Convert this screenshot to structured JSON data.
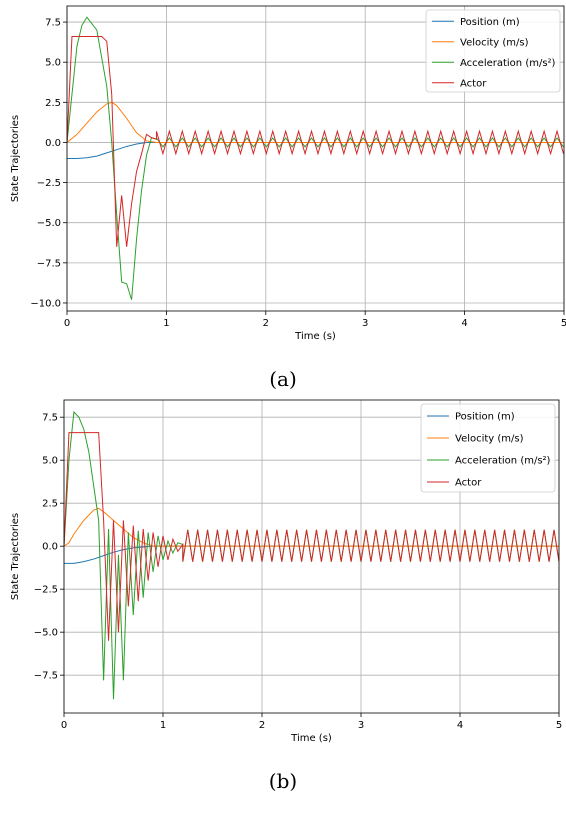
{
  "chart_data": [
    {
      "type": "line",
      "caption": "(a)",
      "xlabel": "Time (s)",
      "ylabel": "State Trajectories",
      "xlim": [
        0,
        5
      ],
      "ylim": [
        -10.5,
        8.5
      ],
      "xticks": [
        0,
        1,
        2,
        3,
        4,
        5
      ],
      "xtick_labels": [
        "0",
        "1",
        "2",
        "3",
        "4",
        "5"
      ],
      "yticks": [
        -10.0,
        -7.5,
        -5.0,
        -2.5,
        0.0,
        2.5,
        5.0,
        7.5
      ],
      "ytick_labels": [
        "−10.0",
        "−7.5",
        "−5.0",
        "−2.5",
        "0.0",
        "2.5",
        "5.0",
        "7.5"
      ],
      "grid": true,
      "legend_position": "top-right",
      "series": [
        {
          "name": "Position (m)",
          "color": "#1f77b4",
          "x": [
            0,
            0.1,
            0.2,
            0.3,
            0.4,
            0.5,
            0.6,
            0.7,
            0.8,
            0.9,
            1.0,
            1.5,
            2.0,
            2.5,
            3.0,
            3.5,
            4.0,
            4.5,
            5.0
          ],
          "y": [
            -1.0,
            -1.0,
            -0.95,
            -0.85,
            -0.65,
            -0.45,
            -0.25,
            -0.1,
            0.0,
            0.0,
            0.0,
            0.0,
            0.0,
            0.0,
            0.0,
            0.0,
            0.0,
            0.0,
            0.0
          ]
        },
        {
          "name": "Velocity (m/s)",
          "color": "#ff7f0e",
          "x": [
            0,
            0.1,
            0.2,
            0.3,
            0.4,
            0.45,
            0.5,
            0.6,
            0.7,
            0.8,
            0.9,
            1.0,
            1.5,
            2.0,
            2.5,
            3.0,
            3.5,
            4.0,
            4.5,
            5.0
          ],
          "y": [
            0.0,
            0.5,
            1.2,
            1.9,
            2.4,
            2.5,
            2.3,
            1.5,
            0.6,
            0.1,
            0.0,
            0.0,
            0.0,
            0.0,
            0.0,
            0.0,
            0.0,
            0.0,
            0.0,
            0.0
          ]
        },
        {
          "name": "Acceleration (m/s²)",
          "color": "#2ca02c",
          "x": [
            0,
            0.05,
            0.1,
            0.15,
            0.2,
            0.3,
            0.4,
            0.45,
            0.5,
            0.55,
            0.6,
            0.65,
            0.7,
            0.75,
            0.8,
            0.85,
            0.9,
            1.0,
            1.2,
            1.5,
            2.0,
            2.5,
            3.0,
            3.5,
            4.0,
            4.5,
            5.0
          ],
          "y": [
            0.0,
            3.0,
            6.0,
            7.3,
            7.8,
            7.0,
            3.5,
            0.0,
            -4.5,
            -8.7,
            -8.8,
            -9.8,
            -6.0,
            -3.0,
            -0.8,
            0.3,
            0.2,
            0.0,
            0.1,
            0.1,
            0.1,
            0.1,
            0.1,
            0.1,
            0.1,
            0.1,
            0.1
          ]
        },
        {
          "name": "Actor",
          "color": "#d62728",
          "x": [
            0,
            0.05,
            0.1,
            0.35,
            0.4,
            0.45,
            0.5,
            0.55,
            0.6,
            0.65,
            0.7,
            0.75,
            0.8,
            0.85,
            0.9,
            1.0,
            1.5,
            2.0,
            2.5,
            3.0,
            3.5,
            4.0,
            4.5,
            5.0
          ],
          "y": [
            0.0,
            6.6,
            6.6,
            6.6,
            6.3,
            3.0,
            -6.5,
            -3.3,
            -6.5,
            -3.8,
            -1.8,
            -0.7,
            0.5,
            0.3,
            0.2,
            0.0,
            0.0,
            0.0,
            0.0,
            0.0,
            0.0,
            0.0,
            0.0,
            0.0
          ]
        }
      ]
    },
    {
      "type": "line",
      "caption": "(b)",
      "xlabel": "Time (s)",
      "ylabel": "State Trajectories",
      "xlim": [
        0,
        5
      ],
      "ylim": [
        -9.7,
        8.5
      ],
      "xticks": [
        0,
        1,
        2,
        3,
        4,
        5
      ],
      "xtick_labels": [
        "0",
        "1",
        "2",
        "3",
        "4",
        "5"
      ],
      "yticks": [
        -7.5,
        -5.0,
        -2.5,
        0.0,
        2.5,
        5.0,
        7.5
      ],
      "ytick_labels": [
        "−7.5",
        "−5.0",
        "−2.5",
        "0.0",
        "2.5",
        "5.0",
        "7.5"
      ],
      "grid": true,
      "legend_position": "top-right",
      "series": [
        {
          "name": "Position (m)",
          "color": "#1f77b4",
          "x": [
            0,
            0.1,
            0.2,
            0.3,
            0.4,
            0.5,
            0.6,
            0.7,
            0.8,
            0.9,
            1.0,
            1.5,
            2.0,
            2.5,
            3.0,
            3.5,
            4.0,
            4.5,
            5.0
          ],
          "y": [
            -1.0,
            -1.0,
            -0.9,
            -0.75,
            -0.55,
            -0.35,
            -0.2,
            -0.1,
            -0.05,
            0.0,
            0.0,
            0.0,
            0.0,
            0.0,
            0.0,
            0.0,
            0.0,
            0.0,
            0.0
          ]
        },
        {
          "name": "Velocity (m/s)",
          "color": "#ff7f0e",
          "x": [
            0,
            0.05,
            0.1,
            0.2,
            0.3,
            0.35,
            0.4,
            0.5,
            0.6,
            0.7,
            0.8,
            0.9,
            1.0,
            1.5,
            2.0,
            2.5,
            3.0,
            3.5,
            4.0,
            4.5,
            5.0
          ],
          "y": [
            0.0,
            0.2,
            0.7,
            1.5,
            2.1,
            2.2,
            2.0,
            1.5,
            1.0,
            0.5,
            0.2,
            0.0,
            0.0,
            0.0,
            0.0,
            0.0,
            0.0,
            0.0,
            0.0,
            0.0,
            0.0
          ]
        },
        {
          "name": "Acceleration (m/s²)",
          "color": "#2ca02c",
          "x": [
            0,
            0.05,
            0.1,
            0.15,
            0.2,
            0.25,
            0.3,
            0.35,
            0.4,
            0.45,
            0.5,
            0.55,
            0.6,
            0.65,
            0.7,
            0.75,
            0.8,
            0.85,
            0.9,
            0.95,
            1.0,
            1.05,
            1.1,
            1.15,
            1.2,
            1.5,
            2.0,
            2.5,
            3.0,
            3.5,
            4.0,
            4.5,
            5.0
          ],
          "y": [
            0.0,
            5.0,
            7.8,
            7.5,
            6.8,
            5.5,
            3.5,
            1.5,
            -7.8,
            1.0,
            -8.9,
            -0.5,
            -7.8,
            0.8,
            -4.0,
            0.9,
            -3.0,
            0.8,
            -1.5,
            0.6,
            -0.8,
            0.3,
            -0.4,
            0.2,
            0.1,
            0.1,
            0.1,
            0.1,
            0.1,
            0.1,
            0.1,
            0.1,
            0.1
          ]
        },
        {
          "name": "Actor",
          "color": "#d62728",
          "x": [
            0,
            0.05,
            0.1,
            0.35,
            0.4,
            0.45,
            0.5,
            0.55,
            0.6,
            0.65,
            0.7,
            0.75,
            0.8,
            0.85,
            0.9,
            0.95,
            1.0,
            1.05,
            1.1,
            1.15,
            1.2,
            1.5,
            2.0,
            2.5,
            3.0,
            3.5,
            4.0,
            4.5,
            5.0
          ],
          "y": [
            0.0,
            6.6,
            6.6,
            6.6,
            1.5,
            -5.5,
            1.5,
            -5.0,
            1.5,
            -3.5,
            1.2,
            -3.2,
            1.0,
            -2.0,
            0.8,
            -1.2,
            0.6,
            -0.8,
            0.4,
            -0.3,
            0.1,
            0.0,
            0.0,
            0.0,
            0.0,
            0.0,
            0.0,
            0.0,
            0.0
          ]
        }
      ]
    }
  ]
}
